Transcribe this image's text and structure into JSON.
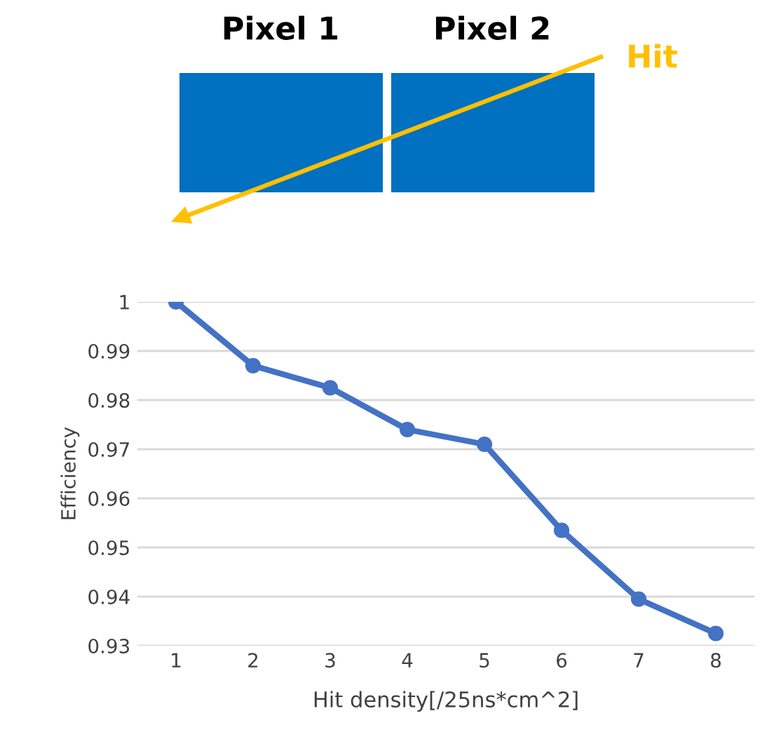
{
  "chart_data": {
    "type": "line",
    "xlabel": "Hit density[/25ns*cm^2]",
    "ylabel": "Efficiency",
    "categories": [
      "1",
      "2",
      "3",
      "4",
      "5",
      "6",
      "7",
      "8"
    ],
    "series": [
      {
        "color": "#4472c4",
        "values": [
          1,
          0.987,
          0.9825,
          0.974,
          0.971,
          0.9535,
          0.9395,
          0.9325
        ]
      }
    ],
    "ylim": [
      0.93,
      1
    ],
    "yticks": [
      0.93,
      0.94,
      0.95,
      0.96,
      0.97,
      0.98,
      0.99,
      1
    ],
    "grid": "y",
    "marker": "circle",
    "line_style": "solid",
    "legend": false,
    "annotations": [
      "Pixel 1",
      "Pixel 2",
      "Hit"
    ]
  }
}
